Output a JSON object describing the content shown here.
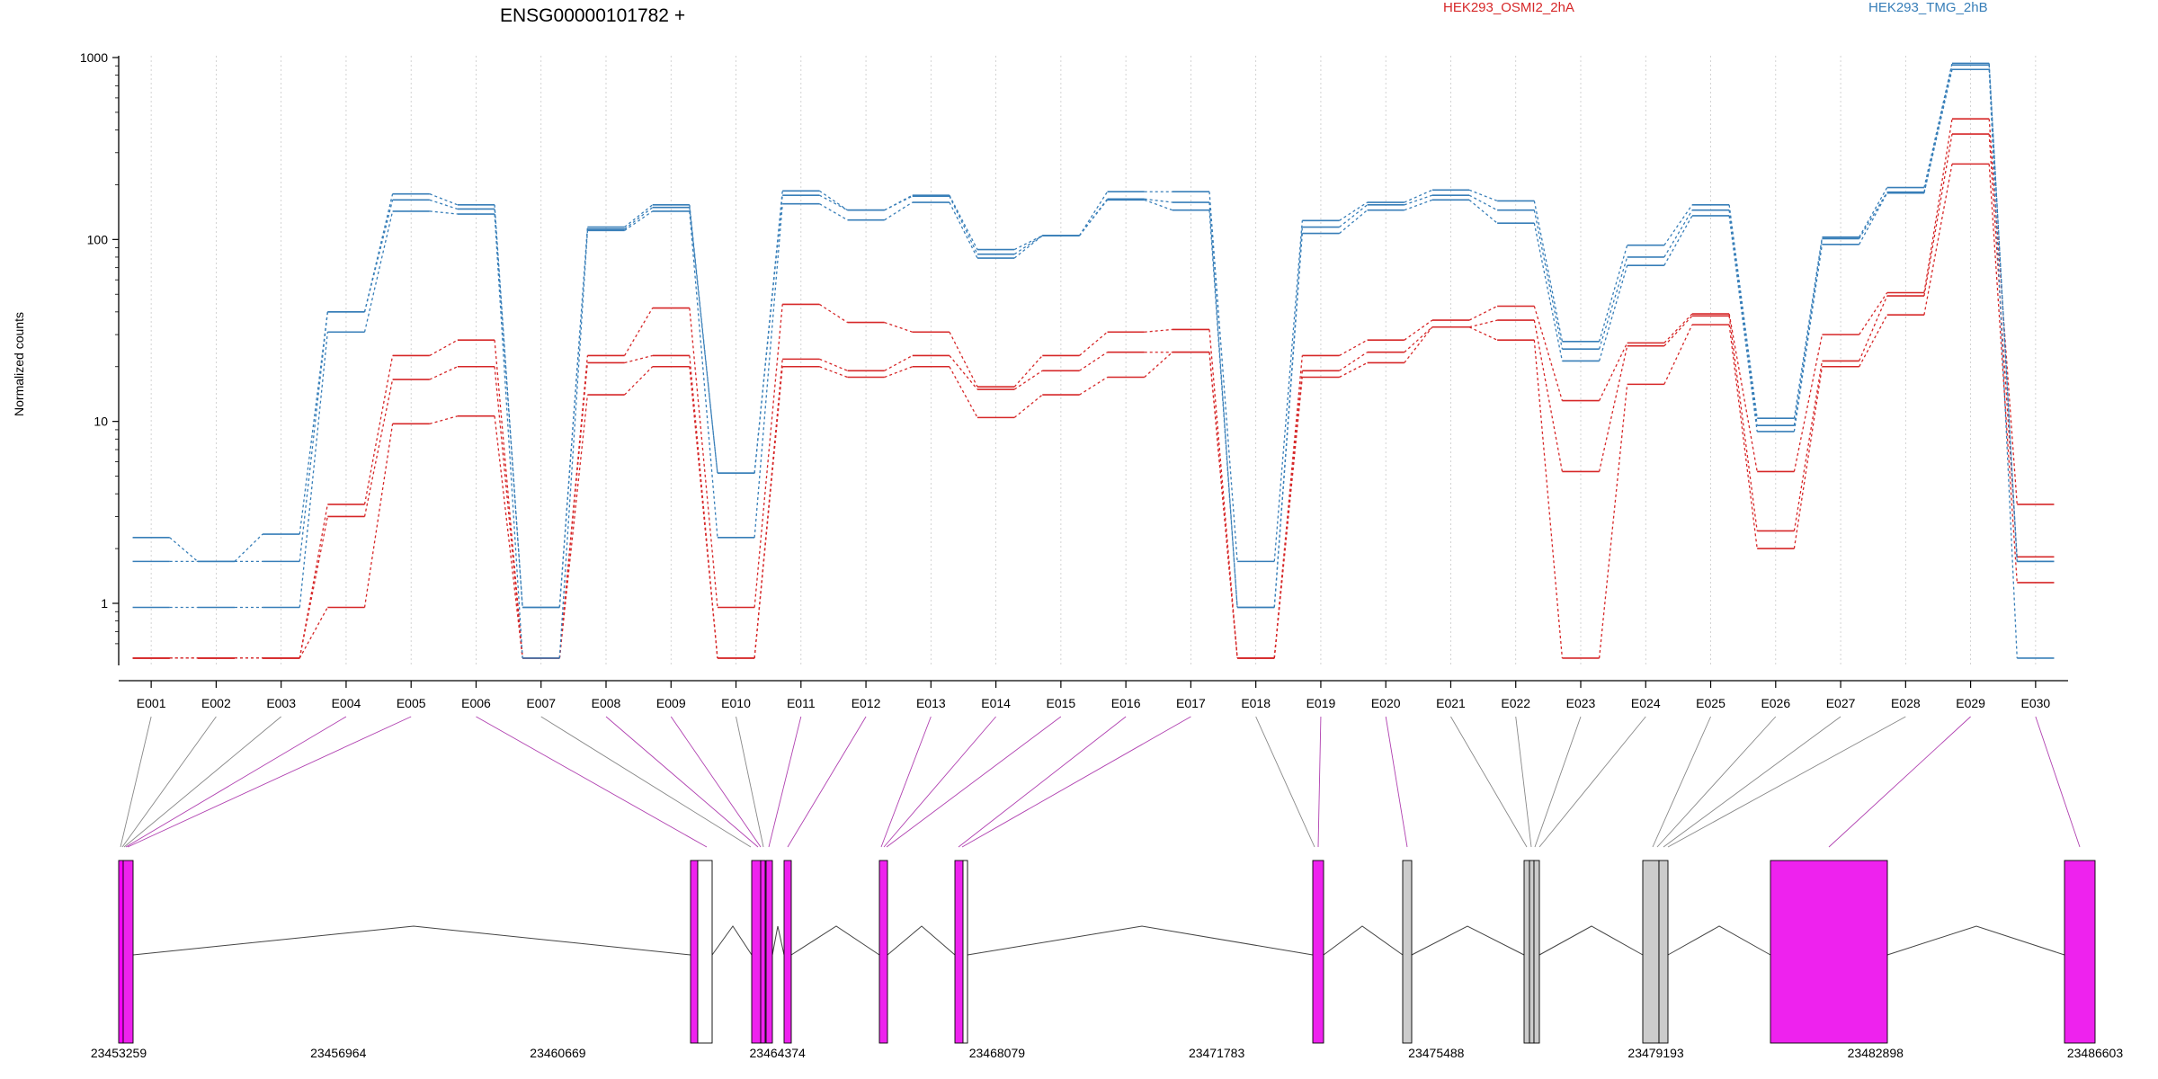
{
  "chart_data": {
    "type": "line",
    "title": "ENSG00000101782 +",
    "ylabel": "Normalized counts",
    "y_scale": "log",
    "ylim": [
      0.5,
      1000
    ],
    "y_ticks": [
      1,
      10,
      100,
      1000
    ],
    "y_tick_labels": [
      "1",
      "10",
      "100",
      "1000"
    ],
    "grid": "vertical dotted at each exon",
    "legend_placement": "top",
    "categories": [
      "E001",
      "E002",
      "E003",
      "E004",
      "E005",
      "E006",
      "E007",
      "E008",
      "E009",
      "E010",
      "E011",
      "E012",
      "E013",
      "E014",
      "E015",
      "E016",
      "E017",
      "E018",
      "E019",
      "E020",
      "E021",
      "E022",
      "E023",
      "E024",
      "E025",
      "E026",
      "E027",
      "E028",
      "E029",
      "E030"
    ],
    "groups": [
      {
        "name": "HEK293_OSMI2_2hA",
        "color": "#d62728"
      },
      {
        "name": "HEK293_TMG_2hB",
        "color": "#377eb8"
      }
    ],
    "series": [
      {
        "group": 0,
        "values": [
          0.5,
          0.5,
          0.5,
          3.5,
          23,
          28,
          0.5,
          23,
          42,
          0.95,
          44,
          35,
          31,
          15.5,
          23,
          31,
          32,
          0.5,
          23,
          28,
          36,
          43,
          13,
          27,
          39,
          5.3,
          30,
          51,
          460,
          3.5
        ]
      },
      {
        "group": 0,
        "values": [
          0.5,
          0.5,
          0.5,
          3.0,
          17,
          20,
          0.5,
          21,
          23,
          0.5,
          22,
          19,
          23,
          15,
          19,
          24,
          24,
          0.5,
          19,
          24,
          33,
          36,
          5.3,
          26,
          38,
          2.5,
          21.5,
          49,
          380,
          1.8
        ]
      },
      {
        "group": 0,
        "values": [
          0.5,
          0.5,
          0.5,
          0.95,
          9.7,
          10.7,
          0.5,
          14,
          20,
          0.5,
          20,
          17.5,
          20,
          10.5,
          14,
          17.5,
          24,
          0.5,
          17.5,
          21,
          33,
          28,
          0.5,
          16,
          34,
          2.0,
          20,
          38.5,
          260,
          1.3
        ]
      },
      {
        "group": 1,
        "values": [
          2.3,
          1.7,
          2.4,
          40,
          178,
          155,
          0.95,
          117,
          155,
          5.2,
          185,
          145,
          175,
          88,
          105,
          183,
          183,
          1.7,
          127,
          160,
          187,
          163,
          27.5,
          93,
          155,
          10.4,
          103,
          193,
          930,
          1.7
        ]
      },
      {
        "group": 1,
        "values": [
          1.7,
          1.7,
          1.7,
          40,
          165,
          147,
          0.95,
          114,
          150,
          5.2,
          175,
          145,
          173,
          83,
          105,
          167,
          160,
          0.95,
          117,
          155,
          175,
          145,
          25,
          80,
          145,
          9.5,
          101,
          182,
          910,
          1.7
        ]
      },
      {
        "group": 1,
        "values": [
          0.95,
          0.95,
          0.95,
          31,
          143,
          138,
          0.5,
          112,
          143,
          2.3,
          157,
          128,
          160,
          79,
          105,
          165,
          145,
          0.95,
          108,
          145,
          165,
          123,
          21.5,
          72,
          135,
          8.8,
          94,
          180,
          860,
          0.5
        ]
      }
    ],
    "gene_model": {
      "coord_labels": [
        "23453259",
        "23456964",
        "23460669",
        "23464374",
        "23468079",
        "23471783",
        "23475488",
        "23479193",
        "23482898",
        "23486603"
      ]
    }
  }
}
